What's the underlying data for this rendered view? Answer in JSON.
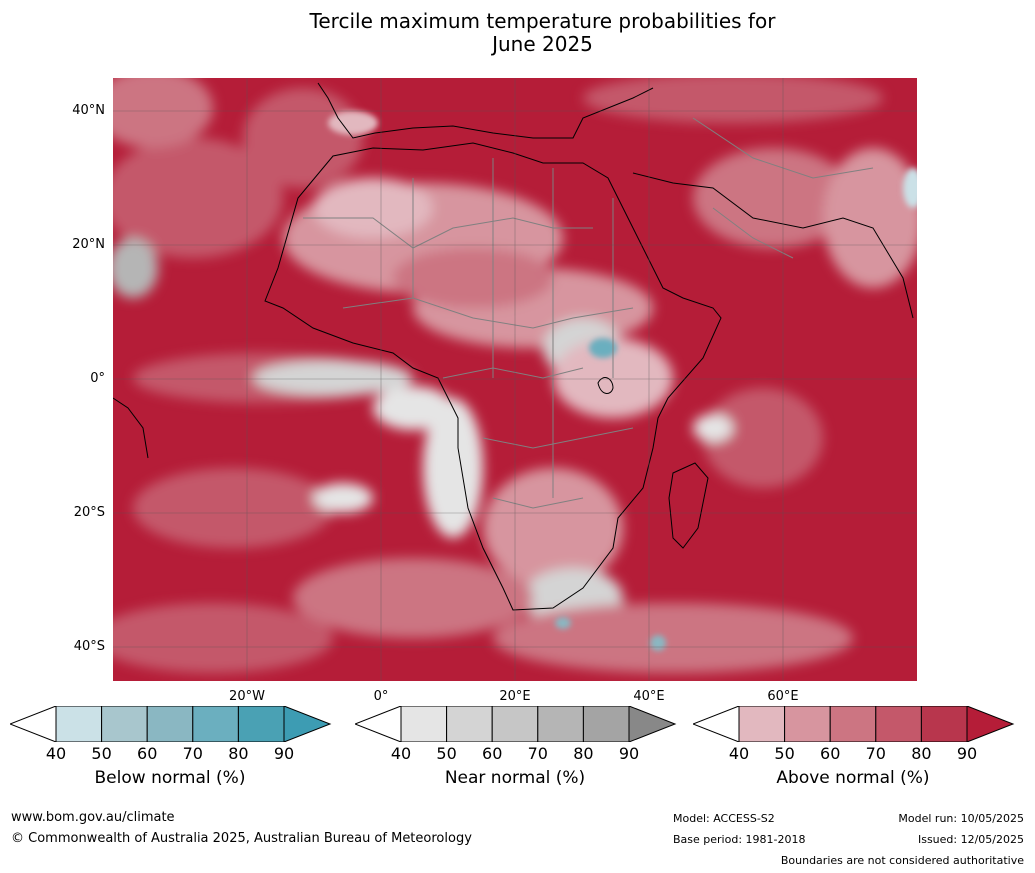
{
  "title_line1": "Tercile maximum temperature probabilities for",
  "title_line2": "June 2025",
  "lat_labels": [
    "40°N",
    "20°N",
    "0°",
    "20°S",
    "40°S"
  ],
  "lon_labels": [
    "20°W",
    "0°",
    "20°E",
    "40°E",
    "60°E"
  ],
  "colorbars": [
    {
      "label": "Below normal (%)",
      "ticks": [
        "40",
        "50",
        "60",
        "70",
        "80",
        "90"
      ],
      "colors": [
        "#ffffff",
        "#cbe1e7",
        "#a8c6cd",
        "#8ab7c2",
        "#6bafbf",
        "#4aa1b4",
        "#3d9cb3"
      ]
    },
    {
      "label": "Near normal (%)",
      "ticks": [
        "40",
        "50",
        "60",
        "70",
        "80",
        "90"
      ],
      "colors": [
        "#ffffff",
        "#e5e5e5",
        "#d4d4d4",
        "#c6c6c6",
        "#b5b5b5",
        "#a4a4a4",
        "#888888"
      ]
    },
    {
      "label": "Above normal (%)",
      "ticks": [
        "40",
        "50",
        "60",
        "70",
        "80",
        "90"
      ],
      "colors": [
        "#ffffff",
        "#e2b8bf",
        "#d7959f",
        "#cc7582",
        "#c4586a",
        "#b8364d",
        "#b51d38"
      ]
    }
  ],
  "footer": {
    "website": "www.bom.gov.au/climate",
    "copyright": "© Commonwealth of Australia 2025, Australian Bureau of Meteorology",
    "model": "Model: ACCESS-S2",
    "base_period": "Base period: 1981-2018",
    "model_run": "Model run: 10/05/2025",
    "issued": "Issued: 12/05/2025",
    "disclaimer": "Boundaries are not considered authoritative"
  }
}
